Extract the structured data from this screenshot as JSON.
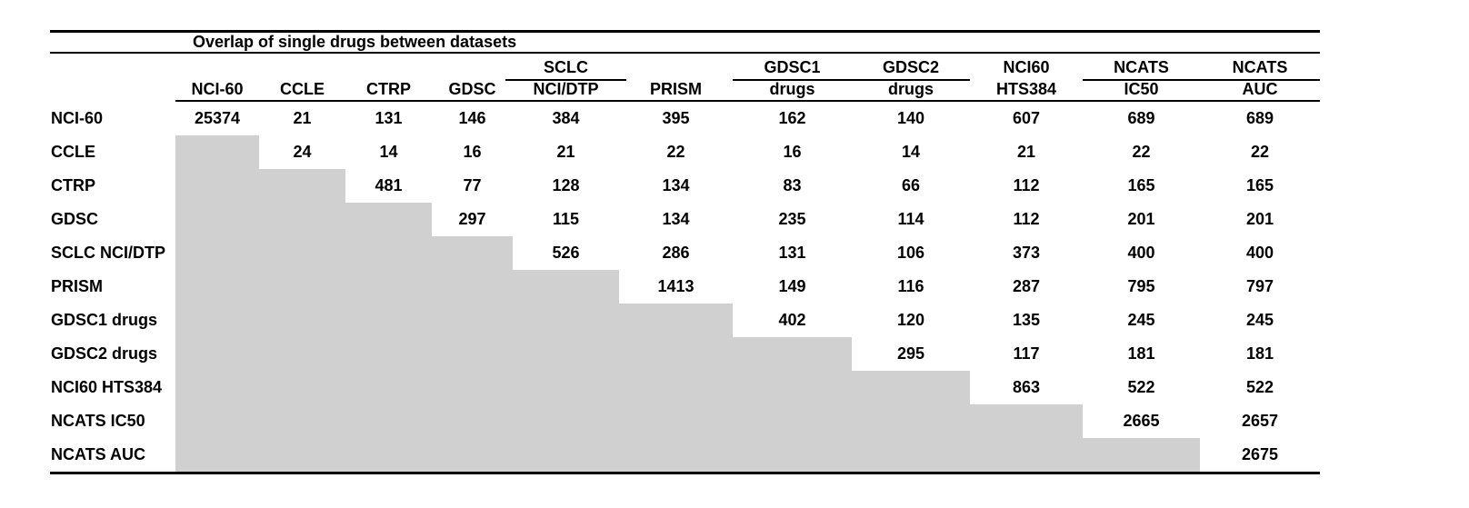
{
  "table": {
    "title": "Overlap of single drugs between datasets",
    "header": {
      "group_line": [
        "",
        "",
        "",
        "",
        "SCLC",
        "",
        "GDSC1",
        "GDSC2",
        "NCI60",
        "NCATS",
        "NCATS"
      ],
      "column_line": [
        "NCI-60",
        "CCLE",
        "CTRP",
        "GDSC",
        "NCI/DTP",
        "PRISM",
        "drugs",
        "drugs",
        "HTS384",
        "IC50",
        "AUC"
      ]
    },
    "rows": [
      {
        "label": "NCI-60",
        "values": [
          25374,
          21,
          131,
          146,
          384,
          395,
          162,
          140,
          607,
          689,
          689
        ]
      },
      {
        "label": "CCLE",
        "values": [
          null,
          24,
          14,
          16,
          21,
          22,
          16,
          14,
          21,
          22,
          22
        ]
      },
      {
        "label": "CTRP",
        "values": [
          null,
          null,
          481,
          77,
          128,
          134,
          83,
          66,
          112,
          165,
          165
        ]
      },
      {
        "label": "GDSC",
        "values": [
          null,
          null,
          null,
          297,
          115,
          134,
          235,
          114,
          112,
          201,
          201
        ]
      },
      {
        "label": "SCLC NCI/DTP",
        "values": [
          null,
          null,
          null,
          null,
          526,
          286,
          131,
          106,
          373,
          400,
          400
        ]
      },
      {
        "label": "PRISM",
        "values": [
          null,
          null,
          null,
          null,
          null,
          1413,
          149,
          116,
          287,
          795,
          797
        ]
      },
      {
        "label": "GDSC1 drugs",
        "values": [
          null,
          null,
          null,
          null,
          null,
          null,
          402,
          120,
          135,
          245,
          245
        ]
      },
      {
        "label": "GDSC2 drugs",
        "values": [
          null,
          null,
          null,
          null,
          null,
          null,
          null,
          295,
          117,
          181,
          181
        ]
      },
      {
        "label": "NCI60 HTS384",
        "values": [
          null,
          null,
          null,
          null,
          null,
          null,
          null,
          null,
          863,
          522,
          522
        ]
      },
      {
        "label": "NCATS IC50",
        "values": [
          null,
          null,
          null,
          null,
          null,
          null,
          null,
          null,
          null,
          2665,
          2657
        ]
      },
      {
        "label": "NCATS AUC",
        "values": [
          null,
          null,
          null,
          null,
          null,
          null,
          null,
          null,
          null,
          null,
          2675
        ]
      }
    ]
  },
  "chart_data": {
    "type": "table",
    "title": "Overlap of single drugs between datasets",
    "columns": [
      "NCI-60",
      "CCLE",
      "CTRP",
      "GDSC",
      "SCLC NCI/DTP",
      "PRISM",
      "GDSC1 drugs",
      "GDSC2 drugs",
      "NCI60 HTS384",
      "NCATS IC50",
      "NCATS AUC"
    ],
    "row_labels": [
      "NCI-60",
      "CCLE",
      "CTRP",
      "GDSC",
      "SCLC NCI/DTP",
      "PRISM",
      "GDSC1 drugs",
      "GDSC2 drugs",
      "NCI60 HTS384",
      "NCATS IC50",
      "NCATS AUC"
    ],
    "matrix": [
      [
        25374,
        21,
        131,
        146,
        384,
        395,
        162,
        140,
        607,
        689,
        689
      ],
      [
        null,
        24,
        14,
        16,
        21,
        22,
        16,
        14,
        21,
        22,
        22
      ],
      [
        null,
        null,
        481,
        77,
        128,
        134,
        83,
        66,
        112,
        165,
        165
      ],
      [
        null,
        null,
        null,
        297,
        115,
        134,
        235,
        114,
        112,
        201,
        201
      ],
      [
        null,
        null,
        null,
        null,
        526,
        286,
        131,
        106,
        373,
        400,
        400
      ],
      [
        null,
        null,
        null,
        null,
        null,
        1413,
        149,
        116,
        287,
        795,
        797
      ],
      [
        null,
        null,
        null,
        null,
        null,
        null,
        402,
        120,
        135,
        245,
        245
      ],
      [
        null,
        null,
        null,
        null,
        null,
        null,
        null,
        295,
        117,
        181,
        181
      ],
      [
        null,
        null,
        null,
        null,
        null,
        null,
        null,
        null,
        863,
        522,
        522
      ],
      [
        null,
        null,
        null,
        null,
        null,
        null,
        null,
        null,
        null,
        2665,
        2657
      ],
      [
        null,
        null,
        null,
        null,
        null,
        null,
        null,
        null,
        null,
        null,
        2675
      ]
    ],
    "shading": "lower-triangle cells filled gray (no values)"
  },
  "colors": {
    "shaded_cell": "#d0d0d0",
    "text": "#000000",
    "rule": "#000000",
    "background": "#ffffff"
  }
}
